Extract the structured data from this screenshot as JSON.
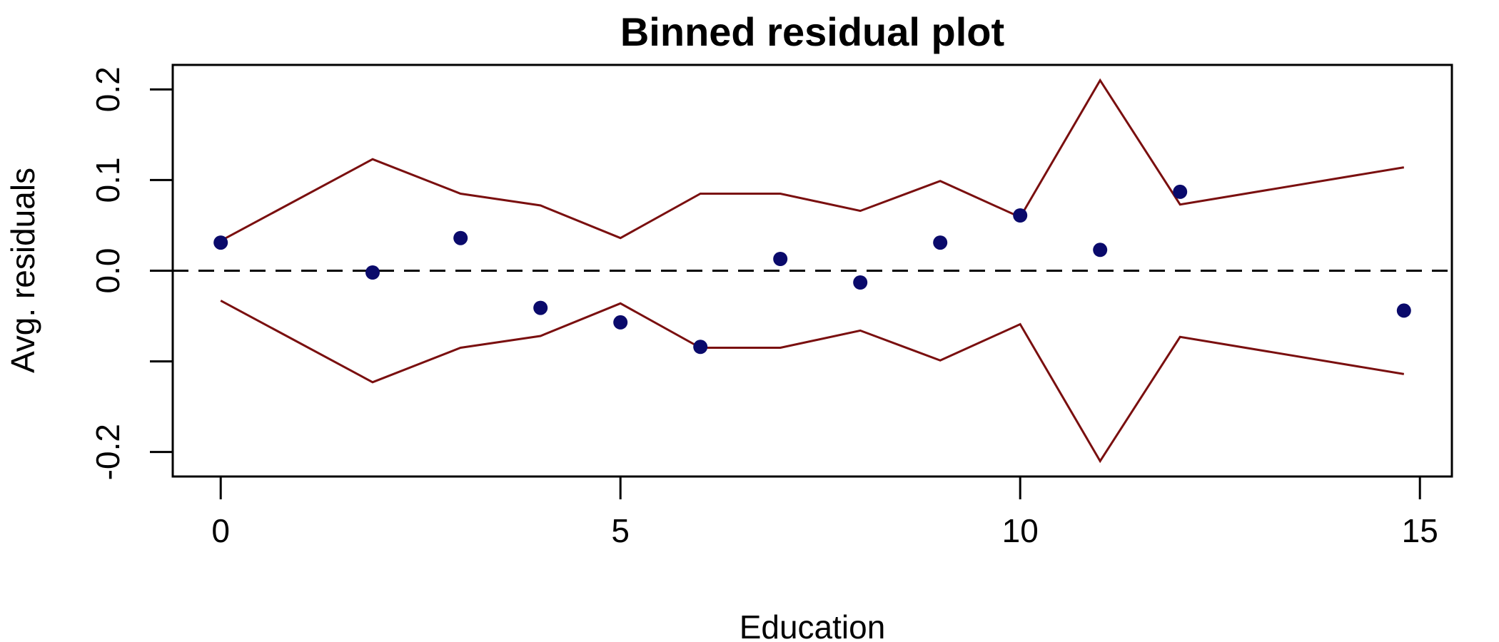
{
  "chart_data": {
    "type": "scatter",
    "title": "Binned residual plot",
    "xlabel": "Education",
    "ylabel": "Avg. residuals",
    "xlim": [
      -0.6,
      15.4
    ],
    "ylim": [
      -0.227,
      0.227
    ],
    "x_ticks": [
      0,
      5,
      10,
      15
    ],
    "x_tick_labels": [
      "0",
      "5",
      "10",
      "15"
    ],
    "y_ticks": [
      -0.2,
      -0.1,
      0.0,
      0.1,
      0.2
    ],
    "y_tick_labels": [
      "-0.2",
      "",
      "0.0",
      "0.1",
      "0.2"
    ],
    "grid": false,
    "reference_line": {
      "y": 0,
      "style": "dashed",
      "color": "#000000"
    },
    "points": {
      "color": "#0a0a6b",
      "x": [
        0,
        1.9,
        3,
        4,
        5,
        6,
        7,
        8,
        9,
        10,
        11,
        12,
        14.8
      ],
      "y": [
        0.031,
        -0.002,
        0.036,
        -0.041,
        -0.057,
        -0.084,
        0.013,
        -0.013,
        0.031,
        0.061,
        0.023,
        0.087,
        -0.044
      ]
    },
    "bounds": {
      "color": "#7a0f0f",
      "x": [
        0,
        1.9,
        3,
        4,
        5,
        6,
        7,
        8,
        9,
        10,
        11,
        12,
        14.8
      ],
      "upper": [
        0.033,
        0.123,
        0.085,
        0.072,
        0.036,
        0.085,
        0.085,
        0.066,
        0.099,
        0.059,
        0.21,
        0.073,
        0.114
      ],
      "lower": [
        -0.033,
        -0.123,
        -0.085,
        -0.072,
        -0.036,
        -0.085,
        -0.085,
        -0.066,
        -0.099,
        -0.059,
        -0.21,
        -0.073,
        -0.114
      ]
    }
  }
}
